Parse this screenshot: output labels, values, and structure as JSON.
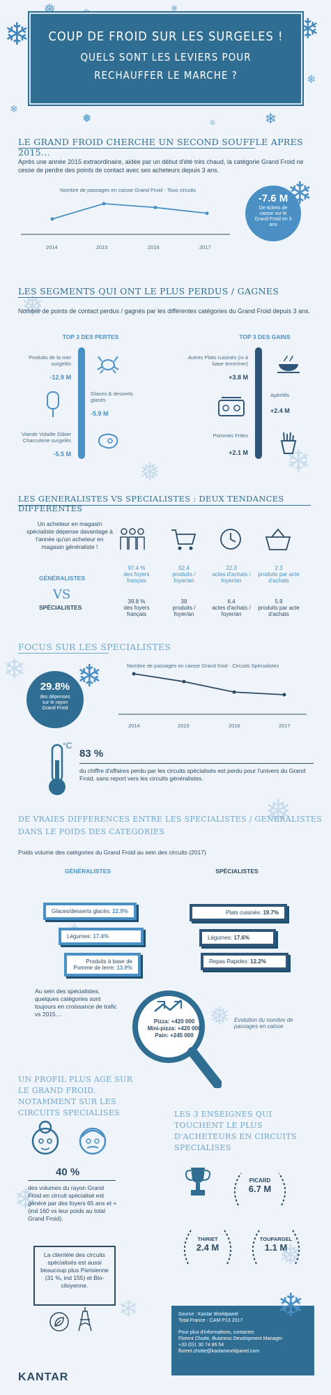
{
  "header": {
    "line1": "COUP DE FROID SUR LES SURGELES !",
    "line2": "QUELS SONT LES LEVIERS POUR",
    "line3": "RECHAUFFER LE MARCHE ?"
  },
  "section1": {
    "title": "LE GRAND FROID CHERCHE UN SECOND SOUFFLE APRES 2015...",
    "text": "Après une année 2015 extraordinaire, aidée par un début d'été très chaud, la catégorie Grand Froid ne cesse de perdre des points de contact avec ses acheteurs depuis 3 ans.",
    "chart_caption": "Nombre de passages en caisse Grand Froid - Tous circuits",
    "years": [
      "2014",
      "2015",
      "2016",
      "2017"
    ],
    "kpi_value": "-7.6 M",
    "kpi_text": "De tickets de caisse sur le Grand Froid en 3 ans"
  },
  "section2": {
    "title": "LES SEGMENTS QUI ONT LE PLUS PERDUS / GAGNES",
    "text": "Nombre de points de contact perdus / gagnés par les différentes catégories du Grand Froid depuis 3 ans.",
    "losses_header": "TOP 3 DES PERTES",
    "gains_header": "TOP 3 DES GAINS",
    "losses": [
      {
        "label": "Produits de la mer surgelés",
        "value": "-12.9 M"
      },
      {
        "label": "Glaces & desserts glacés",
        "value": "-5.9 M"
      },
      {
        "label": "Viande Volaille Gibier Charcuterie surgelés",
        "value": "-5.5 M"
      }
    ],
    "gains": [
      {
        "label": "Autres Plats cuisinés (ni à base terre/mer)",
        "value": "+3.8 M"
      },
      {
        "label": "Apéritifs",
        "value": "+2.4 M"
      },
      {
        "label": "Pommes Frites",
        "value": "+2.1 M"
      }
    ]
  },
  "section3": {
    "title": "LES GENERALISTES VS SPECIALISTES : DEUX TENDANCES DIFFERENTES",
    "quote": "Un acheteur en magasin spécialiste dépense davantage à l'année qu'un acheteur en magasin généraliste !",
    "row1_label": "GÉNÉRALISTES",
    "vs": "VS",
    "row2_label": "SPÉCIALISTES",
    "generalistes": [
      {
        "value": "97.4 %",
        "unit": "des foyers français"
      },
      {
        "value": "52.4",
        "unit": "produits / foyer/an"
      },
      {
        "value": "22.3",
        "unit": "actes d'achats / foyer/an"
      },
      {
        "value": "2.3",
        "unit": "produits par acte d'achats"
      }
    ],
    "specialistes": [
      {
        "value": "39.8 %",
        "unit": "des foyers français"
      },
      {
        "value": "38",
        "unit": "produits / foyer/an"
      },
      {
        "value": "6.4",
        "unit": "actes d'achats / foyer/an"
      },
      {
        "value": "5.9",
        "unit": "produits par acte d'achats"
      }
    ]
  },
  "section4": {
    "title": "FOCUS SUR LES SPECIALISTES",
    "kpi_value": "29.8%",
    "kpi_text": "des dépenses sur le rayon Grand Froid",
    "chart_caption": "Nombre de passages en caisse Grand froid - Circuits Spécialistes",
    "years": [
      "2014",
      "2015",
      "2016",
      "2017"
    ],
    "pct": "83 %",
    "pct_text": "du chiffre d'affaires perdu par les circuits spécialisés est perdu pour l'univers du Grand Froid, sans report vers les circuits généralistes."
  },
  "section5": {
    "title_line1": "DE VRAIES DIFFERENCES ENTRE LES SPECIALISTES / GENERALISTES",
    "title_line2": "DANS LE POIDS DES CATEGORIES",
    "subtitle": "Poids volume des catégories du Grand Froid au sein des circuits (2017)",
    "gen_header": "GÉNÉRALISTES",
    "spe_header": "SPÉCIALISTES",
    "gen_items": [
      {
        "label": "Glaces/desserts glacés:",
        "value": "22.9%"
      },
      {
        "label": "Légumes:",
        "value": "17.4%"
      },
      {
        "label": "Produits à base de Pomme de terre:",
        "value": "13.9%"
      }
    ],
    "spe_items": [
      {
        "label": "Plats cuisinés:",
        "value": "19.7%"
      },
      {
        "label": "Légumes:",
        "value": "17.6%"
      },
      {
        "label": "Repas Rapides:",
        "value": "12.2%"
      }
    ],
    "growth_text": "Au sein des spécialistes, quelques catégories sont toujours en croissance de trafic vs 2015....",
    "growth_lines": [
      "Pizza: +420 000",
      "Mini-pizza: +420 000",
      "Pain: +245 000"
    ],
    "growth_note": "Evolution du nombre de passages en caisse"
  },
  "section6": {
    "title": "UN PROFIL PLUS AGE SUR LE GRAND FROID, NOTAMMENT SUR LES CIRCUITS SPECIALISES",
    "pct": "40 %",
    "pct_text": "des volumes du rayon Grand Froid en circuit spécialisé est généré par des foyers 65 ans et + (ind 160 vs leur poids au total Grand Froid).",
    "box_text": "La clientèle des circuits spécialisés est aussi beaucoup plus Parisienne (31 %, ind 155) et Bio-citoyenne."
  },
  "section7": {
    "title": "LES 3 ENSEIGNES QUI TOUCHENT LE PLUS D'ACHETEURS EN CIRCUITS SPECIALISES",
    "brands": [
      {
        "name": "PICARD",
        "value": "6.7 M"
      },
      {
        "name": "THIRIET",
        "value": "2.4 M"
      },
      {
        "name": "TOUPARGEL",
        "value": "1.1 M"
      }
    ]
  },
  "footer": {
    "source1": "Source : Kantar Worldpanel",
    "source2": "Total France - CAM P13 2017",
    "contact1": "Pour plus d'informations, contactez",
    "contact2": "Florent Chotte, Business Development Manager",
    "contact3": "+33 (0)1 30 74 86 54",
    "contact4": "florent.chotte@kantarworldpanel.com",
    "logo": "KANTAR"
  },
  "chart_data": [
    {
      "type": "line",
      "title": "Nombre de passages en caisse Grand Froid - Tous circuits",
      "x": [
        "2014",
        "2015",
        "2016",
        "2017"
      ],
      "values": [
        100,
        108,
        106,
        103
      ]
    },
    {
      "type": "line",
      "title": "Nombre de passages en caisse Grand froid - Circuits Spécialistes",
      "x": [
        "2014",
        "2015",
        "2016",
        "2017"
      ],
      "values": [
        100,
        94,
        86,
        84
      ]
    }
  ],
  "colors": {
    "primary": "#2f6d93",
    "accent": "#4a90c4",
    "background": "#eef4f9"
  }
}
